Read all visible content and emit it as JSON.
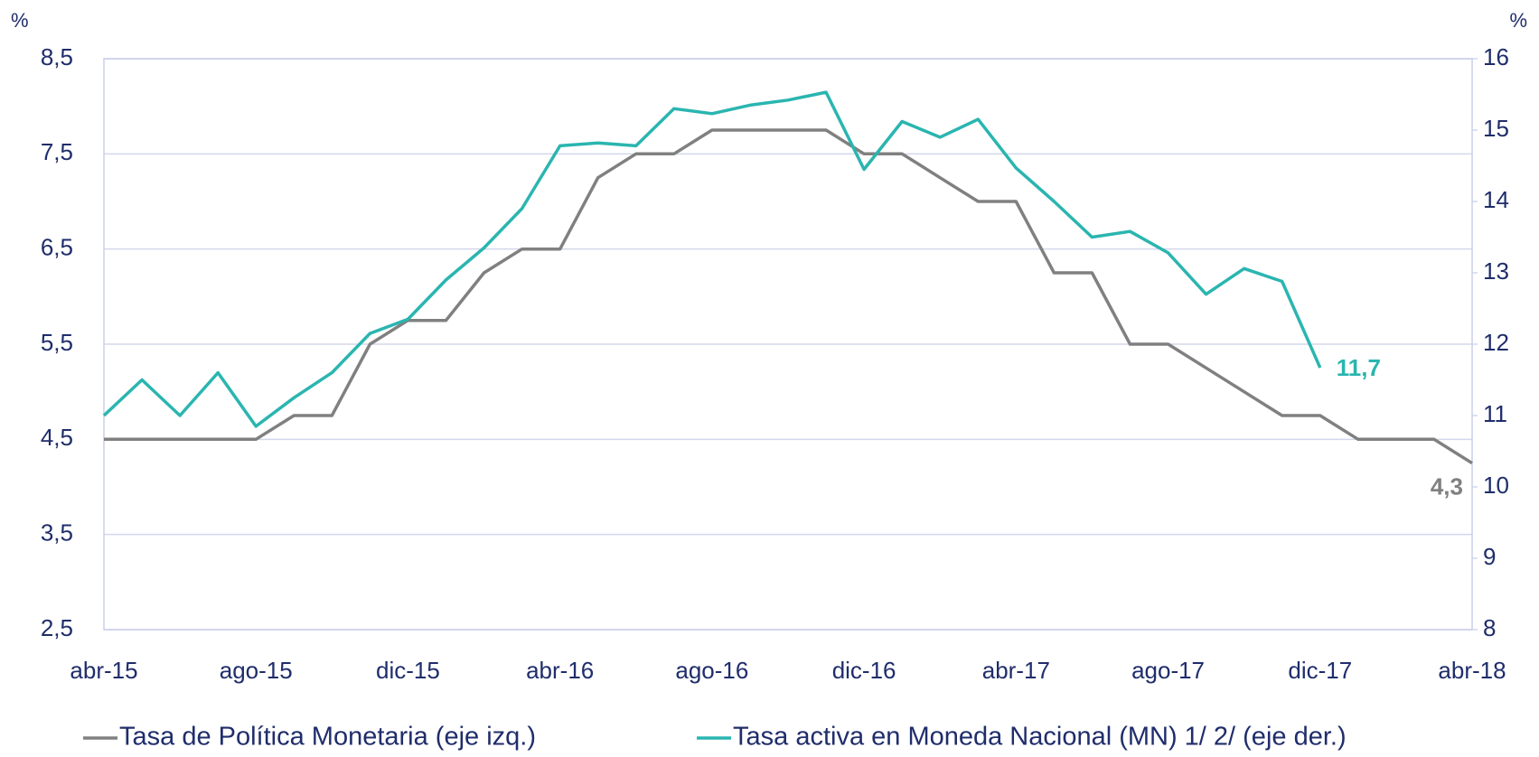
{
  "chart_data": {
    "type": "line",
    "ylabel": "%",
    "y2label": "%",
    "categories": [
      "abr-15",
      null,
      null,
      null,
      "ago-15",
      null,
      null,
      null,
      "dic-15",
      null,
      null,
      null,
      "abr-16",
      null,
      null,
      null,
      "ago-16",
      null,
      null,
      null,
      "dic-16",
      null,
      null,
      null,
      "abr-17",
      null,
      null,
      null,
      "ago-17",
      null,
      null,
      null,
      "dic-17",
      null,
      null,
      null,
      "abr-18"
    ],
    "ylim": [
      2.5,
      8.5
    ],
    "yticks": [
      {
        "value": 2.5,
        "label": "2,5"
      },
      {
        "value": 3.5,
        "label": "3,5"
      },
      {
        "value": 4.5,
        "label": "4,5"
      },
      {
        "value": 5.5,
        "label": "5,5"
      },
      {
        "value": 6.5,
        "label": "6,5"
      },
      {
        "value": 7.5,
        "label": "7,5"
      },
      {
        "value": 8.5,
        "label": "8,5"
      }
    ],
    "y2lim": [
      8,
      16
    ],
    "y2ticks": [
      8,
      9,
      10,
      11,
      12,
      13,
      14,
      15,
      16
    ],
    "grid": true,
    "legend": "bottom",
    "series": [
      {
        "name": "Tasa de Política Monetaria (eje izq.)",
        "color": "#808080",
        "values": [
          4.5,
          4.5,
          4.5,
          4.5,
          4.5,
          4.75,
          4.75,
          5.5,
          5.75,
          5.75,
          6.25,
          6.5,
          6.5,
          7.25,
          7.5,
          7.5,
          7.75,
          7.75,
          7.75,
          7.75,
          7.5,
          7.5,
          7.25,
          7.0,
          7.0,
          6.25,
          6.25,
          5.5,
          5.5,
          5.25,
          5.0,
          4.75,
          4.75,
          4.5,
          4.5,
          4.5,
          4.25
        ],
        "value_labels": [
          null,
          null,
          null,
          null,
          null,
          null,
          null,
          null,
          null,
          null,
          null,
          null,
          null,
          null,
          null,
          null,
          null,
          null,
          null,
          null,
          null,
          null,
          null,
          null,
          null,
          null,
          null,
          null,
          null,
          null,
          null,
          null,
          null,
          null,
          null,
          null,
          "4,3"
        ]
      },
      {
        "name": "Tasa activa en Moneda Nacional (MN) 1/ 2/ (eje der.)",
        "color": "#2ab5b0",
        "axis": "y2",
        "values": [
          11.0,
          11.5,
          11.0,
          11.6,
          10.85,
          11.25,
          11.6,
          12.15,
          12.35,
          12.9,
          13.35,
          13.9,
          14.78,
          14.82,
          14.78,
          15.3,
          15.23,
          15.35,
          15.42,
          15.53,
          14.45,
          15.12,
          14.9,
          15.15,
          14.47,
          14.0,
          13.5,
          13.58,
          13.28,
          12.7,
          13.06,
          12.88,
          11.67,
          null,
          null,
          null,
          null
        ],
        "value_labels": [
          null,
          null,
          null,
          null,
          null,
          null,
          null,
          null,
          null,
          null,
          null,
          null,
          null,
          null,
          null,
          null,
          null,
          null,
          null,
          null,
          null,
          null,
          null,
          null,
          null,
          null,
          null,
          null,
          null,
          null,
          null,
          null,
          "11,7",
          null,
          null,
          null,
          null
        ]
      }
    ]
  }
}
